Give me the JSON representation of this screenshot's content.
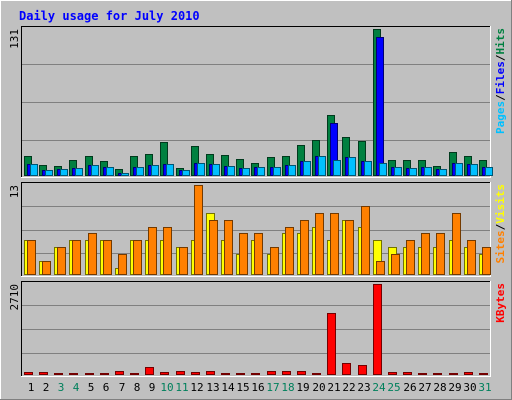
{
  "chart_data": {
    "type": "bar",
    "title": "Daily usage for July 2010",
    "days": [
      "1",
      "2",
      "3",
      "4",
      "5",
      "6",
      "7",
      "8",
      "9",
      "10",
      "11",
      "12",
      "13",
      "14",
      "15",
      "16",
      "17",
      "18",
      "19",
      "20",
      "21",
      "22",
      "23",
      "24",
      "25",
      "26",
      "27",
      "28",
      "29",
      "30",
      "31"
    ],
    "weekend_days": [
      "3",
      "4",
      "10",
      "11",
      "17",
      "18",
      "24",
      "25",
      "31"
    ],
    "colors": {
      "background": "#c0c0c0",
      "hits": "#008040",
      "files": "#0000ff",
      "pages": "#00c0ff",
      "visits": "#ffff00",
      "sites": "#ff8000",
      "kbytes": "#ff0000",
      "title": "#0000ff",
      "weekday_label": "#000000",
      "weekend_label": "#00805c"
    },
    "panels": [
      {
        "id": "hits-files-pages",
        "max_label": "131",
        "ymax": 131,
        "legend": [
          {
            "text": "Pages",
            "color": "#00c0ff"
          },
          {
            "text": "/",
            "color": "#000000"
          },
          {
            "text": "Files",
            "color": "#0000ff"
          },
          {
            "text": "/",
            "color": "#000000"
          },
          {
            "text": "Hits",
            "color": "#008040"
          }
        ],
        "series": [
          {
            "name": "Hits",
            "color": "#008040",
            "values": [
              18,
              10,
              9,
              14,
              18,
              13,
              6,
              18,
              20,
              30,
              7,
              27,
              20,
              19,
              15,
              12,
              17,
              18,
              28,
              32,
              54,
              35,
              31,
              131,
              14,
              14,
              14,
              9,
              21,
              18,
              14
            ]
          },
          {
            "name": "Files",
            "color": "#0000ff",
            "values": [
              11,
              5,
              6,
              7,
              10,
              8,
              3,
              8,
              10,
              11,
              5,
              12,
              11,
              9,
              7,
              8,
              8,
              10,
              13,
              18,
              47,
              17,
              13,
              124,
              8,
              7,
              8,
              6,
              12,
              11,
              8
            ]
          },
          {
            "name": "Pages",
            "color": "#00c0ff",
            "values": [
              11,
              5,
              6,
              7,
              10,
              8,
              3,
              8,
              10,
              11,
              5,
              12,
              11,
              9,
              7,
              8,
              8,
              10,
              13,
              18,
              14,
              17,
              13,
              12,
              8,
              7,
              8,
              6,
              12,
              11,
              8
            ]
          }
        ]
      },
      {
        "id": "visits-sites",
        "max_label": "13",
        "ymax": 13,
        "legend": [
          {
            "text": "Sites",
            "color": "#ff8000"
          },
          {
            "text": "/",
            "color": "#000000"
          },
          {
            "text": "Visits",
            "color": "#ffff00"
          }
        ],
        "series": [
          {
            "name": "Visits",
            "color": "#ffff00",
            "values": [
              5,
              2,
              4,
              5,
              5,
              5,
              1,
              5,
              5,
              5,
              4,
              5,
              9,
              5,
              3,
              5,
              3,
              6,
              6,
              7,
              5,
              8,
              7,
              5,
              4,
              4,
              4,
              4,
              5,
              4,
              3
            ]
          },
          {
            "name": "Sites",
            "color": "#ff8000",
            "values": [
              5,
              2,
              4,
              5,
              6,
              5,
              3,
              5,
              7,
              7,
              4,
              13,
              8,
              8,
              6,
              6,
              4,
              7,
              8,
              9,
              9,
              8,
              10,
              2,
              3,
              5,
              6,
              6,
              9,
              5,
              4
            ]
          }
        ]
      },
      {
        "id": "kbytes",
        "max_label": "2710",
        "ymax": 2710,
        "legend": [
          {
            "text": "KBytes",
            "color": "#ff0000"
          }
        ],
        "series": [
          {
            "name": "KBytes",
            "color": "#ff0000",
            "values": [
              90,
              100,
              60,
              60,
              60,
              60,
              130,
              60,
              230,
              80,
              120,
              80,
              110,
              70,
              70,
              60,
              130,
              130,
              110,
              60,
              1850,
              350,
              290,
              2710,
              90,
              100,
              60,
              60,
              70,
              100,
              70
            ]
          }
        ]
      }
    ]
  }
}
